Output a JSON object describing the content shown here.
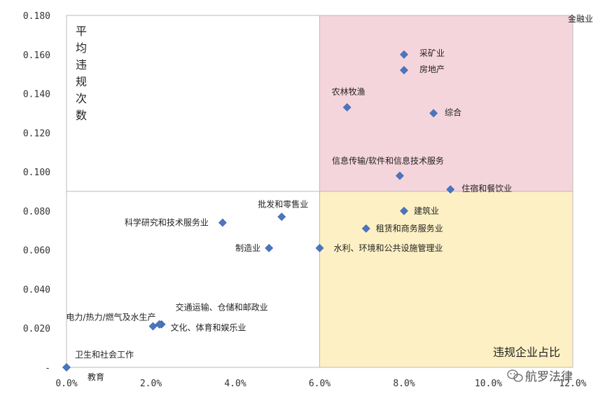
{
  "chart_data": {
    "type": "scatter",
    "xlabel": "违规企业占比",
    "ylabel": "平均违规次数",
    "xlim": [
      0,
      0.12
    ],
    "ylim": [
      0,
      0.18
    ],
    "x_ticks": [
      "0.0%",
      "2.0%",
      "4.0%",
      "6.0%",
      "8.0%",
      "10.0%",
      "12.0%"
    ],
    "y_ticks": [
      "-",
      "0.020",
      "0.040",
      "0.060",
      "0.080",
      "0.100",
      "0.120",
      "0.140",
      "0.160",
      "0.180"
    ],
    "x_mean": 0.06,
    "y_mean": 0.09,
    "quadrant_colors": {
      "high_high": "#f5d5dc",
      "high_low": "#fdf0c4"
    },
    "marker_color": "#4a76c0",
    "points": [
      {
        "label": "金融业",
        "x": 0.118,
        "y": 0.178,
        "offscale": true
      },
      {
        "label": "采矿业",
        "x": 0.08,
        "y": 0.16
      },
      {
        "label": "房地产",
        "x": 0.08,
        "y": 0.152
      },
      {
        "label": "农林牧渔",
        "x": 0.0665,
        "y": 0.133
      },
      {
        "label": "综合",
        "x": 0.087,
        "y": 0.13
      },
      {
        "label": "信息传输/软件和信息技术服务",
        "x": 0.079,
        "y": 0.098
      },
      {
        "label": "住宿和餐饮业",
        "x": 0.091,
        "y": 0.091
      },
      {
        "label": "批发和零售业",
        "x": 0.051,
        "y": 0.077
      },
      {
        "label": "建筑业",
        "x": 0.08,
        "y": 0.08
      },
      {
        "label": "科学研究和技术服务业",
        "x": 0.037,
        "y": 0.074
      },
      {
        "label": "租赁和商务服务业",
        "x": 0.071,
        "y": 0.071
      },
      {
        "label": "制造业",
        "x": 0.048,
        "y": 0.061
      },
      {
        "label": "水利、环境和公共设施管理业",
        "x": 0.06,
        "y": 0.061
      },
      {
        "label": "交通运输、仓储和邮政业",
        "x": 0.0225,
        "y": 0.022
      },
      {
        "label": "电力/热力/燃气及水生产",
        "x": 0.0205,
        "y": 0.021
      },
      {
        "label": "文化、体育和娱乐业",
        "x": 0.022,
        "y": 0.022
      },
      {
        "label": "卫生和社会工作",
        "x": 0.0,
        "y": 0.0
      },
      {
        "label": "教育",
        "x": 0.0,
        "y": 0.0
      }
    ]
  },
  "watermark": {
    "text": "航罗法律",
    "icon": "wechat-icon"
  }
}
